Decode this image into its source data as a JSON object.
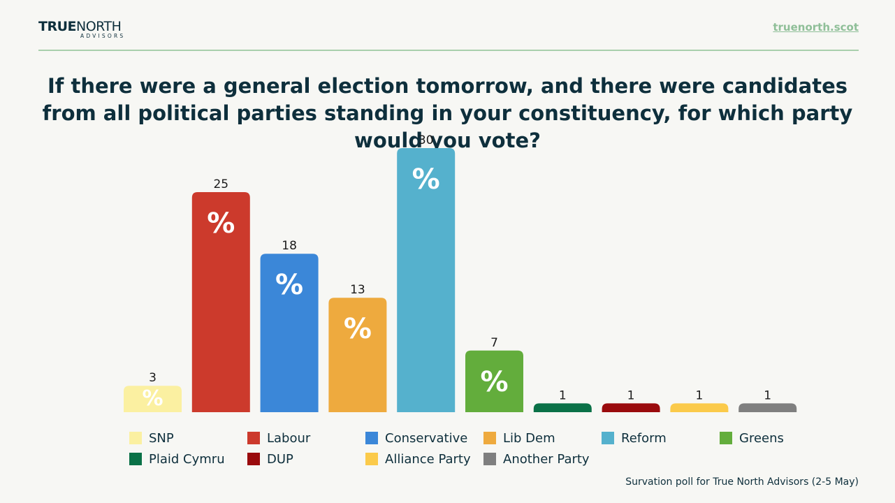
{
  "header": {
    "logo_true": "TRUE",
    "logo_north": "NORTH",
    "logo_sub": "ADVISORS",
    "site": "truenorth.scot"
  },
  "colors": {
    "accent": "#8fbf98",
    "text": "#0e2f3c"
  },
  "chart_data": {
    "type": "bar",
    "title": "If there were a general election tomorrow, and there were candidates from all political parties standing in your constituency, for which party would you vote?",
    "categories": [
      "SNP",
      "Labour",
      "Conservative",
      "Lib Dem",
      "Reform",
      "Greens",
      "Plaid Cymru",
      "DUP",
      "Alliance Party",
      "Another Party"
    ],
    "values": [
      3,
      25,
      18,
      13,
      30,
      7,
      1,
      1,
      1,
      1
    ],
    "unit_symbol": "%",
    "colors": [
      "#fbf0a1",
      "#cc3a2c",
      "#3b87d8",
      "#eeaa3e",
      "#55b1cd",
      "#63ad3c",
      "#0a7147",
      "#9a0b0d",
      "#fbca4a",
      "#7f7f7f"
    ],
    "xlabel": "",
    "ylabel": "",
    "ylim": [
      0,
      30
    ],
    "legend_position": "bottom",
    "grid": false
  },
  "legend": {
    "items": [
      {
        "label": "SNP",
        "color": "#fbf0a1"
      },
      {
        "label": "Labour",
        "color": "#cc3a2c"
      },
      {
        "label": "Conservative",
        "color": "#3b87d8"
      },
      {
        "label": "Lib Dem",
        "color": "#eeaa3e"
      },
      {
        "label": "Reform",
        "color": "#55b1cd"
      },
      {
        "label": "Greens",
        "color": "#63ad3c"
      },
      {
        "label": "Plaid Cymru",
        "color": "#0a7147"
      },
      {
        "label": "DUP",
        "color": "#9a0b0d"
      },
      {
        "label": "Alliance Party",
        "color": "#fbca4a"
      },
      {
        "label": "Another Party",
        "color": "#7f7f7f"
      }
    ]
  },
  "footer": {
    "source": "Survation poll for True North Advisors (2-5 May)"
  }
}
